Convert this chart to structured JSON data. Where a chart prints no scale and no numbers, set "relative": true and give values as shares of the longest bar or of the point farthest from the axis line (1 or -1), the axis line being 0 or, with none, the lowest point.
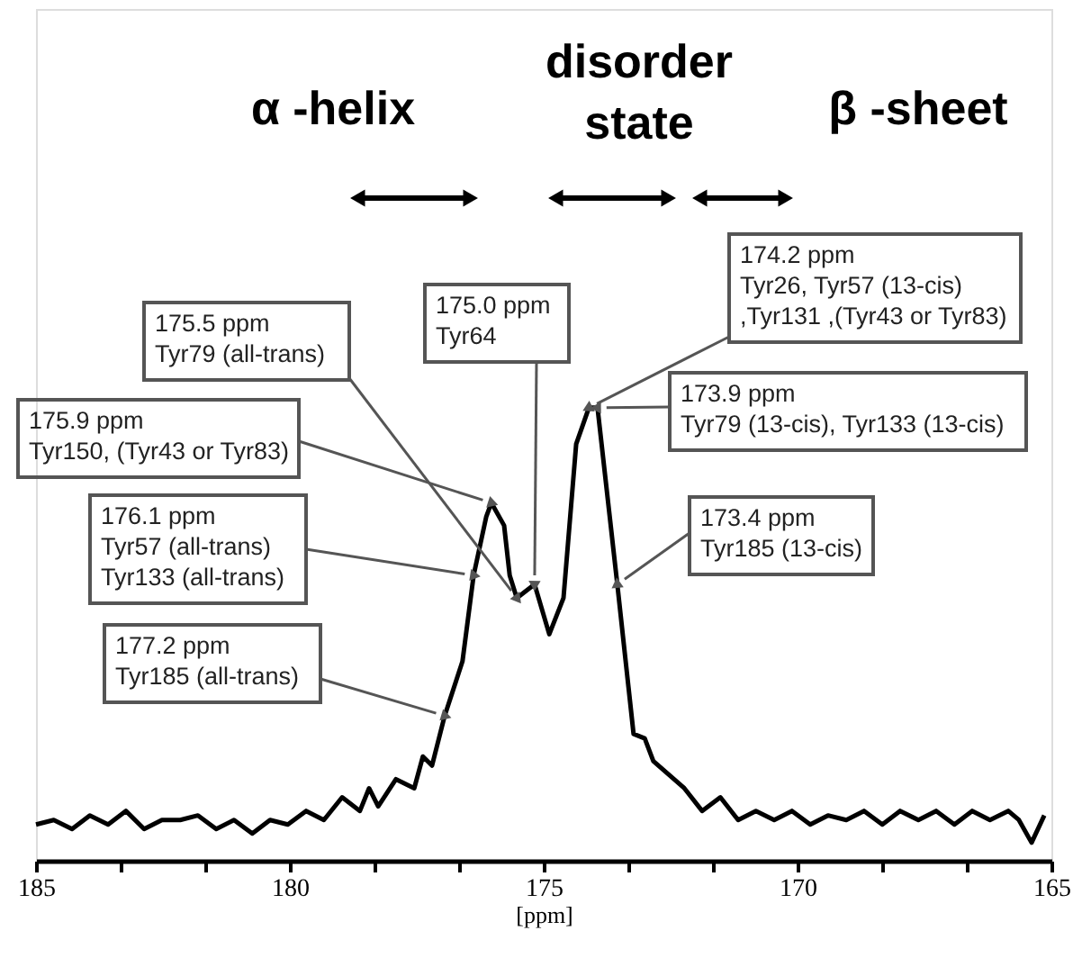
{
  "chart_data": {
    "type": "line",
    "relative": true,
    "xlabel": "[ppm]",
    "xlim": [
      185,
      165
    ],
    "xticks": [
      185,
      {
        "value": 183.33,
        "label": null
      },
      {
        "value": 181.67,
        "label": null
      },
      180,
      {
        "value": 178.33,
        "label": null
      },
      {
        "value": 176.67,
        "label": null
      },
      175,
      {
        "value": 173.33,
        "label": null
      },
      {
        "value": 171.67,
        "label": null
      },
      170,
      {
        "value": 168.33,
        "label": null
      },
      {
        "value": 166.67,
        "label": null
      },
      165
    ],
    "grid": false,
    "marker": "none",
    "line_style": "solid",
    "series": [
      {
        "color": "#000000",
        "x": [
          185.0,
          184.65,
          184.29,
          183.94,
          183.58,
          183.23,
          182.87,
          182.52,
          182.16,
          181.81,
          181.45,
          181.1,
          180.74,
          180.39,
          180.04,
          179.68,
          179.33,
          178.97,
          178.62,
          178.44,
          178.26,
          177.91,
          177.55,
          177.38,
          177.2,
          176.95,
          176.6,
          176.38,
          176.13,
          176.03,
          175.78,
          175.67,
          175.53,
          175.18,
          174.89,
          174.61,
          174.36,
          174.11,
          173.94,
          173.55,
          173.23,
          173.01,
          172.84,
          172.23,
          171.88,
          171.52,
          171.17,
          170.82,
          170.46,
          170.11,
          169.75,
          169.4,
          169.04,
          168.69,
          168.33,
          167.98,
          167.62,
          167.27,
          166.91,
          166.56,
          166.21,
          165.85,
          165.64,
          165.39,
          165.14
        ],
        "values": [
          0.08,
          0.09,
          0.07,
          0.1,
          0.08,
          0.11,
          0.07,
          0.09,
          0.09,
          0.1,
          0.07,
          0.09,
          0.06,
          0.09,
          0.08,
          0.11,
          0.09,
          0.14,
          0.11,
          0.16,
          0.12,
          0.18,
          0.16,
          0.23,
          0.21,
          0.32,
          0.44,
          0.63,
          0.76,
          0.79,
          0.74,
          0.63,
          0.58,
          0.61,
          0.5,
          0.58,
          0.92,
          1.0,
          1.0,
          0.61,
          0.28,
          0.27,
          0.22,
          0.16,
          0.11,
          0.14,
          0.09,
          0.11,
          0.09,
          0.11,
          0.08,
          0.1,
          0.09,
          0.11,
          0.08,
          0.11,
          0.09,
          0.11,
          0.08,
          0.11,
          0.09,
          0.11,
          0.09,
          0.04,
          0.1
        ]
      }
    ],
    "annotations": [
      {
        "text": "175.5 ppm\nTyr79 (all-trans)",
        "x": 175.53,
        "y": 0.58
      },
      {
        "text": "175.0 ppm\nTyr64",
        "x": 175.18,
        "y": 0.61
      },
      {
        "text": "175.9 ppm\nTyr150, (Tyr43 or Tyr83)",
        "x": 176.03,
        "y": 0.79
      },
      {
        "text": "176.1 ppm\nTyr57 (all-trans)\nTyr133 (all-trans)",
        "x": 176.38,
        "y": 0.63
      },
      {
        "text": "177.2 ppm\nTyr185 (all-trans)",
        "x": 176.95,
        "y": 0.32
      },
      {
        "text": "174.2 ppm\nTyr26, Tyr57 (13-cis)\n,Tyr131 ,(Tyr43 or Tyr83)",
        "x": 174.11,
        "y": 1.0
      },
      {
        "text": "173.9 ppm\nTyr79 (13-cis), Tyr133 (13-cis)",
        "x": 173.94,
        "y": 1.0
      },
      {
        "text": "173.4 ppm\nTyr185 (13-cis)",
        "x": 173.55,
        "y": 0.61
      },
      "α -helix",
      "disorder\nstate",
      "β -sheet"
    ]
  }
}
